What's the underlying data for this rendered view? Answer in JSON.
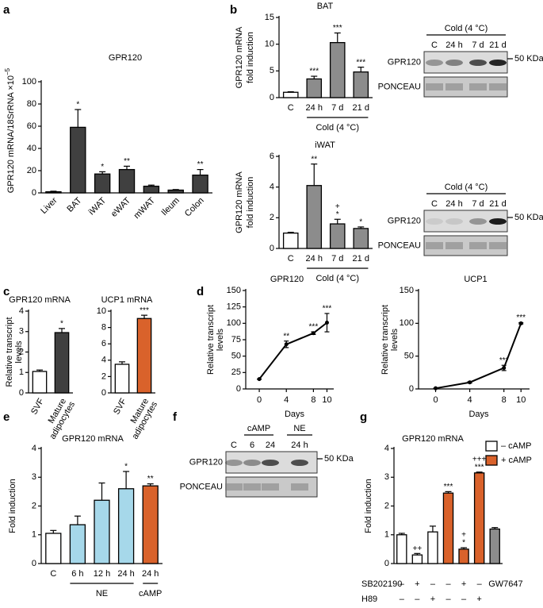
{
  "panel_labels": [
    "a",
    "b",
    "c",
    "d",
    "e",
    "f",
    "g"
  ],
  "chart_data": [
    {
      "type": "bar",
      "title": "GPR120",
      "ylabel": "GPR120 mRNA/18SrRNA ×10",
      "ylabel_exponent": "−5",
      "categories": [
        "Liver",
        "BAT",
        "iWAT",
        "eWAT",
        "mWAT",
        "Ileum",
        "Colon"
      ],
      "values": [
        1,
        59,
        17,
        21,
        6,
        2.5,
        16
      ],
      "errors": [
        0.5,
        16,
        2,
        3,
        1,
        0.5,
        5
      ],
      "annotations": [
        null,
        "*",
        "*",
        "**",
        null,
        null,
        "**"
      ],
      "color": "#404040",
      "ylim": [
        0,
        100
      ],
      "yticks": [
        0,
        20,
        40,
        60,
        80,
        100
      ]
    },
    {
      "type": "bar",
      "title": "BAT",
      "ylabel": [
        "GPR120 mRNA",
        "fold induction"
      ],
      "categories": [
        "C",
        "24 h",
        "7 d",
        "21 d"
      ],
      "values": [
        1,
        3.5,
        10.3,
        4.8
      ],
      "errors": [
        0.1,
        0.5,
        1.8,
        0.9
      ],
      "annotations": [
        null,
        "***",
        "***",
        "***"
      ],
      "colors": [
        "#ffffff",
        "#8c8c8c",
        "#8c8c8c",
        "#8c8c8c"
      ],
      "group_labels": [
        "Cold (4 °C)"
      ],
      "ylim": [
        0,
        15
      ],
      "yticks": [
        0,
        5,
        10,
        15
      ]
    },
    {
      "type": "bar",
      "title": "iWAT",
      "ylabel": [
        "GPR120 mRNA",
        "fold induction"
      ],
      "categories": [
        "C",
        "24 h",
        "7 d",
        "21 d"
      ],
      "values": [
        1,
        4.1,
        1.6,
        1.3
      ],
      "errors": [
        0.05,
        1.4,
        0.3,
        0.1
      ],
      "annotations": [
        null,
        "**",
        [
          "+",
          "*"
        ],
        "*"
      ],
      "colors": [
        "#ffffff",
        "#8c8c8c",
        "#8c8c8c",
        "#8c8c8c"
      ],
      "group_labels": [
        "Cold (4 °C)"
      ],
      "ylim": [
        0,
        6
      ],
      "yticks": [
        0,
        2,
        4,
        6
      ]
    },
    {
      "type": "bar",
      "title": "GPR120 mRNA",
      "ylabel": [
        "Relative transcript",
        "levels"
      ],
      "categories": [
        "SVF",
        [
          "Mature",
          "adipocytes"
        ]
      ],
      "values": [
        1.05,
        2.95
      ],
      "errors": [
        0.07,
        0.2
      ],
      "annotations": [
        null,
        "*"
      ],
      "colors": [
        "#ffffff",
        "#404040"
      ],
      "ylim": [
        0,
        4
      ],
      "yticks": [
        0,
        1,
        2,
        3,
        4
      ]
    },
    {
      "type": "bar",
      "title": "UCP1 mRNA",
      "categories": [
        "SVF",
        [
          "Mature",
          "adipocytes"
        ]
      ],
      "values": [
        3.5,
        9.1
      ],
      "errors": [
        0.3,
        0.4
      ],
      "annotations": [
        null,
        "***"
      ],
      "colors": [
        "#ffffff",
        "#d9622b"
      ],
      "ylim": [
        0,
        10
      ],
      "yticks": [
        0,
        2,
        4,
        6,
        8,
        10
      ]
    },
    {
      "type": "line",
      "title": "GPR120",
      "ylabel": [
        "Relative transcript",
        "levels"
      ],
      "xlabel": "Days",
      "x": [
        0,
        4,
        8,
        10
      ],
      "values": [
        15,
        68,
        85,
        101
      ],
      "errors": [
        0,
        5,
        2,
        14
      ],
      "annotations": [
        null,
        "**",
        "***",
        "***"
      ],
      "color": "#000000",
      "xlim": [
        -2,
        11
      ],
      "xticks": [
        0,
        4,
        8,
        10
      ],
      "ylim": [
        0,
        150
      ],
      "yticks": [
        0,
        25,
        50,
        75,
        100,
        125,
        150
      ]
    },
    {
      "type": "line",
      "title": "UCP1",
      "ylabel": [
        "Relative transcript",
        "levels"
      ],
      "xlabel": "Days",
      "x": [
        0,
        4,
        8,
        10
      ],
      "values": [
        1,
        10,
        32,
        100
      ],
      "errors": [
        0,
        1,
        4,
        1
      ],
      "annotations": [
        null,
        null,
        "***",
        "***"
      ],
      "color": "#000000",
      "xlim": [
        -2,
        11
      ],
      "xticks": [
        0,
        4,
        8,
        10
      ],
      "ylim": [
        0,
        150
      ],
      "yticks": [
        0,
        50,
        100,
        150
      ]
    },
    {
      "type": "bar",
      "title": "GPR120 mRNA",
      "ylabel": "Fold induction",
      "categories": [
        "C",
        "6 h",
        "12 h",
        "24 h",
        "24 h"
      ],
      "values": [
        1.05,
        1.35,
        2.2,
        2.6,
        2.7
      ],
      "errors": [
        0.1,
        0.3,
        0.6,
        0.6,
        0.07
      ],
      "annotations": [
        null,
        null,
        null,
        "*",
        "**"
      ],
      "colors": [
        "#ffffff",
        "#a6d8ea",
        "#a6d8ea",
        "#a6d8ea",
        "#d9622b"
      ],
      "group_labels": [
        "NE",
        "cAMP"
      ],
      "ylim": [
        0,
        4
      ],
      "yticks": [
        0,
        1,
        2,
        3,
        4
      ]
    },
    {
      "type": "bar",
      "title": "GPR120 mRNA",
      "ylabel": "Fold induction",
      "categories": [
        null,
        null,
        null,
        null,
        null,
        null,
        "GW7647"
      ],
      "values": [
        1.0,
        0.3,
        1.1,
        2.45,
        0.5,
        3.15,
        1.2
      ],
      "errors": [
        0.05,
        0.05,
        0.2,
        0.05,
        0.05,
        0.03,
        0.05
      ],
      "annotations": [
        null,
        "++",
        null,
        "***",
        [
          "+",
          "*"
        ],
        [
          "+++",
          "***"
        ],
        null
      ],
      "colors": [
        "#ffffff",
        "#ffffff",
        "#ffffff",
        "#d9622b",
        "#d9622b",
        "#d9622b",
        "#8c8c8c"
      ],
      "legend": [
        {
          "name": "– cAMP",
          "color": "#ffffff"
        },
        {
          "name": "+ cAMP",
          "color": "#d9622b"
        }
      ],
      "conditions": [
        {
          "name": "SB202190",
          "values": [
            "–",
            "+",
            "–",
            "–",
            "+",
            "–",
            null
          ]
        },
        {
          "name": "H89",
          "values": [
            "–",
            "–",
            "+",
            "–",
            "–",
            "+",
            null
          ]
        }
      ],
      "ylim": [
        0,
        4
      ],
      "yticks": [
        0,
        1,
        2,
        3,
        4
      ]
    }
  ],
  "blots": [
    {
      "headers": [
        "Cold (4 °C)"
      ],
      "lanes": [
        "C",
        "24 h",
        "7 d",
        "21 d"
      ],
      "rows": [
        "GPR120",
        "PONCEAU"
      ],
      "marker": "50 KDa"
    },
    {
      "headers": [
        "Cold (4 °C)"
      ],
      "lanes": [
        "C",
        "24 h",
        "7 d",
        "21 d"
      ],
      "rows": [
        "GPR120",
        "PONCEAU"
      ],
      "marker": "50 KDa"
    },
    {
      "headers": [
        "cAMP",
        "NE"
      ],
      "lanes": [
        "C",
        "6",
        "24",
        "24 h"
      ],
      "rows": [
        "GPR120",
        "PONCEAU"
      ],
      "marker": "50 KDa"
    }
  ]
}
